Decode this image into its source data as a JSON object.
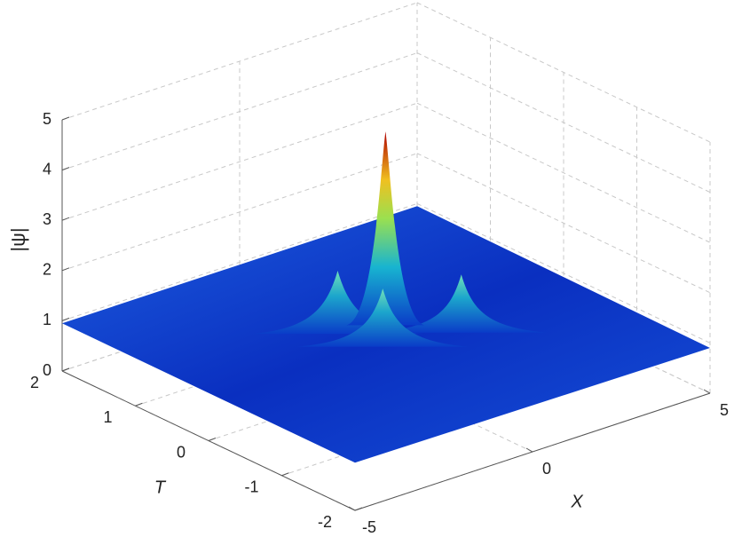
{
  "chart_data": {
    "type": "surface",
    "xlabel": "X",
    "ylabel": "T",
    "zlabel": "|ψ|",
    "xlim": [
      -5,
      5
    ],
    "xticks": [
      -5,
      0,
      5
    ],
    "ylim": [
      -2,
      2
    ],
    "yticks": [
      -2,
      -1,
      0,
      1,
      2
    ],
    "zlim": [
      0,
      5
    ],
    "zticks": [
      0,
      1,
      2,
      3,
      4,
      5
    ],
    "grid": true,
    "surface_edge": {
      "x": [
        -5,
        -5,
        5,
        5
      ],
      "t": [
        2,
        -2,
        -2,
        2
      ],
      "z": [
        0.95,
        0.95,
        0.9,
        0.95
      ]
    },
    "peaks": {
      "x": [
        -0.6,
        1.5,
        0.5,
        -0.3
      ],
      "t": [
        0.37,
        -0.3,
        0.25,
        -0.1
      ],
      "z": [
        2.1,
        2,
        4.7,
        2
      ]
    }
  }
}
